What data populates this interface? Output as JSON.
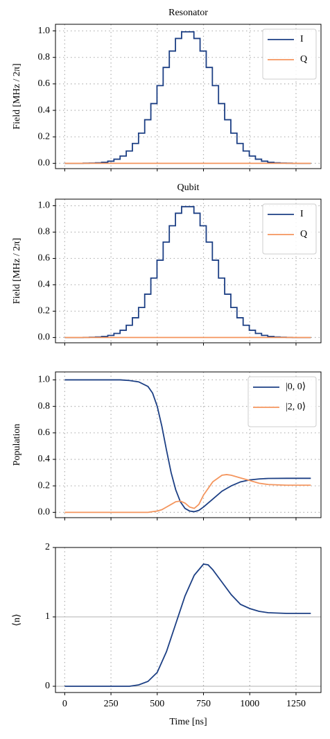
{
  "chart_data": [
    {
      "type": "line",
      "title": "Resonator",
      "ylabel": "Field [MHz / 2π]",
      "drawstyle": "steps",
      "legend": "upper right",
      "xtick_labels": false,
      "grid": {
        "x": "dotted",
        "y": "dotted"
      },
      "x": [
        0,
        33.25,
        66.5,
        99.75,
        133,
        166.25,
        199.5,
        232.75,
        266,
        299.25,
        332.5,
        365.75,
        399,
        432.25,
        465.5,
        498.75,
        532,
        565.25,
        598.5,
        631.75,
        665,
        698.25,
        731.5,
        764.75,
        798,
        831.25,
        864.5,
        897.75,
        931,
        964.25,
        997.5,
        1030.75,
        1064,
        1097.25,
        1130.5,
        1163.75,
        1197,
        1230.25,
        1263.5,
        1296.75,
        1330
      ],
      "series": [
        {
          "name": "I",
          "color": "#1c3f84",
          "values": [
            0,
            0,
            0,
            0.001,
            0.002,
            0.004,
            0.008,
            0.016,
            0.031,
            0.055,
            0.093,
            0.15,
            0.228,
            0.329,
            0.451,
            0.587,
            0.724,
            0.848,
            0.943,
            0.993,
            0.993,
            0.943,
            0.848,
            0.724,
            0.587,
            0.451,
            0.329,
            0.228,
            0.15,
            0.093,
            0.055,
            0.031,
            0.016,
            0.008,
            0.004,
            0.002,
            0.001,
            0,
            0,
            0,
            0
          ]
        },
        {
          "name": "Q",
          "color": "#f4955d",
          "values": [
            0,
            0,
            0,
            0,
            0,
            0,
            0,
            0,
            0,
            0,
            0,
            0,
            0,
            0,
            0,
            0,
            0,
            0,
            0,
            0,
            0,
            0,
            0,
            0,
            0,
            0,
            0,
            0,
            0,
            0,
            0,
            0,
            0,
            0,
            0,
            0,
            0,
            0,
            0,
            0,
            0
          ]
        }
      ],
      "xlim": [
        -50,
        1385
      ],
      "ylim": [
        -0.04,
        1.05
      ],
      "xticks": [
        0,
        250,
        500,
        750,
        1000,
        1250
      ],
      "yticks": [
        {
          "value": 0,
          "label": "0.0"
        },
        0.2,
        0.4,
        0.6,
        0.8,
        {
          "value": 1,
          "label": "1.0"
        }
      ]
    },
    {
      "type": "line",
      "title": "Qubit",
      "ylabel": "Field [MHz / 2π]",
      "drawstyle": "steps",
      "legend": "upper right",
      "xtick_labels": false,
      "grid": {
        "x": "dotted",
        "y": "dotted"
      },
      "x": [
        0,
        33.25,
        66.5,
        99.75,
        133,
        166.25,
        199.5,
        232.75,
        266,
        299.25,
        332.5,
        365.75,
        399,
        432.25,
        465.5,
        498.75,
        532,
        565.25,
        598.5,
        631.75,
        665,
        698.25,
        731.5,
        764.75,
        798,
        831.25,
        864.5,
        897.75,
        931,
        964.25,
        997.5,
        1030.75,
        1064,
        1097.25,
        1130.5,
        1163.75,
        1197,
        1230.25,
        1263.5,
        1296.75,
        1330
      ],
      "series": [
        {
          "name": "I",
          "color": "#1c3f84",
          "values": [
            0,
            0,
            0,
            0.001,
            0.002,
            0.004,
            0.008,
            0.016,
            0.031,
            0.055,
            0.093,
            0.15,
            0.228,
            0.329,
            0.451,
            0.587,
            0.724,
            0.848,
            0.943,
            0.993,
            0.993,
            0.943,
            0.848,
            0.724,
            0.587,
            0.451,
            0.329,
            0.228,
            0.15,
            0.093,
            0.055,
            0.031,
            0.016,
            0.008,
            0.004,
            0.002,
            0.001,
            0,
            0,
            0,
            0
          ]
        },
        {
          "name": "Q",
          "color": "#f4955d",
          "values": [
            0,
            0,
            0,
            0,
            0,
            0,
            0,
            0,
            0,
            0,
            0,
            0,
            0,
            0,
            0,
            0,
            0,
            0,
            0,
            0,
            0,
            0,
            0,
            0,
            0,
            0,
            0,
            0,
            0,
            0,
            0,
            0,
            0,
            0,
            0,
            0,
            0,
            0,
            0,
            0,
            0
          ]
        }
      ],
      "xlim": [
        -50,
        1385
      ],
      "ylim": [
        -0.04,
        1.05
      ],
      "xticks": [
        0,
        250,
        500,
        750,
        1000,
        1250
      ],
      "yticks": [
        {
          "value": 0,
          "label": "0.0"
        },
        0.2,
        0.4,
        0.6,
        0.8,
        {
          "value": 1,
          "label": "1.0"
        }
      ]
    },
    {
      "type": "line",
      "ylabel": "Population",
      "legend": "upper right",
      "xtick_labels": false,
      "grid": {
        "x": "dotted",
        "y": "dotted"
      },
      "x": [
        0,
        300,
        350,
        400,
        450,
        475,
        500,
        525,
        550,
        575,
        600,
        625,
        650,
        675,
        700,
        725,
        750,
        800,
        850,
        875,
        900,
        950,
        1000,
        1050,
        1100,
        1200,
        1330
      ],
      "series": [
        {
          "name": "|0, 0⟩",
          "color": "#1c3f84",
          "values": [
            1,
            1,
            0.995,
            0.985,
            0.95,
            0.9,
            0.8,
            0.65,
            0.47,
            0.3,
            0.17,
            0.08,
            0.03,
            0.01,
            0.005,
            0.015,
            0.04,
            0.1,
            0.16,
            0.18,
            0.2,
            0.23,
            0.245,
            0.252,
            0.256,
            0.257,
            0.257
          ]
        },
        {
          "name": "|2, 0⟩",
          "color": "#f4955d",
          "values": [
            0,
            0,
            0,
            0,
            0,
            0.005,
            0.01,
            0.02,
            0.04,
            0.06,
            0.08,
            0.085,
            0.07,
            0.04,
            0.03,
            0.06,
            0.13,
            0.23,
            0.28,
            0.285,
            0.28,
            0.26,
            0.24,
            0.22,
            0.21,
            0.205,
            0.205
          ]
        }
      ],
      "xlim": [
        -50,
        1385
      ],
      "ylim": [
        -0.04,
        1.06
      ],
      "xticks": [
        0,
        250,
        500,
        750,
        1000,
        1250
      ],
      "yticks": [
        {
          "value": 0,
          "label": "0.0"
        },
        0.2,
        0.4,
        0.6,
        0.8,
        {
          "value": 1,
          "label": "1.0"
        }
      ]
    },
    {
      "type": "line",
      "ylabel": "⟨n⟩",
      "xlabel": "Time [ns]",
      "xtick_labels": true,
      "grid": {
        "x": "dotted",
        "y": "solid"
      },
      "x": [
        0,
        350,
        400,
        450,
        500,
        550,
        600,
        650,
        700,
        750,
        775,
        800,
        850,
        900,
        950,
        1000,
        1050,
        1100,
        1200,
        1330
      ],
      "series": [
        {
          "color": "#1c3f84",
          "values": [
            0,
            0,
            0.02,
            0.07,
            0.2,
            0.5,
            0.9,
            1.3,
            1.6,
            1.76,
            1.75,
            1.68,
            1.5,
            1.32,
            1.18,
            1.12,
            1.08,
            1.06,
            1.05,
            1.05
          ]
        }
      ],
      "xlim": [
        -50,
        1385
      ],
      "ylim": [
        -0.09,
        2
      ],
      "xticks": [
        0,
        250,
        500,
        750,
        1000,
        1250
      ],
      "yticks": [
        0,
        1,
        2
      ]
    }
  ]
}
